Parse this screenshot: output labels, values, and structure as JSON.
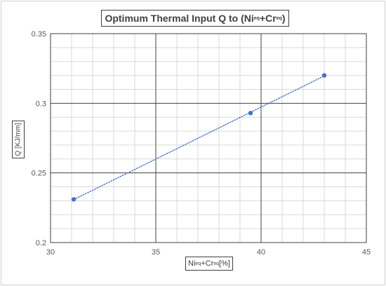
{
  "chart_data": {
    "type": "scatter",
    "title": {
      "prefix": "Optimum Thermal Input Q to (Ni",
      "sub1": "eq",
      "mid": "+Cr",
      "sub2": "eq",
      "suffix": ")"
    },
    "xlabel": {
      "prefix": "Ni",
      "sub1": "eq",
      "mid": "+Cr",
      "sub2": "eq",
      "suffix": " [%]"
    },
    "ylabel": "Q [KJ/mm]",
    "xlim": [
      30,
      45
    ],
    "ylim": [
      0.2,
      0.35
    ],
    "x_ticks": [
      30,
      35,
      40,
      45
    ],
    "y_ticks": [
      0.2,
      0.25,
      0.3,
      0.35
    ],
    "x_tick_labels": [
      "30",
      "35",
      "40",
      "45"
    ],
    "y_tick_labels": [
      "0.2",
      "0.25",
      "0.3",
      "0.35"
    ],
    "x_minor_step": 1,
    "y_minor_step": 0.01,
    "grid": true,
    "trendline": "linear, dotted",
    "series": [
      {
        "x": [
          31.1,
          39.5,
          43.0
        ],
        "y": [
          0.231,
          0.293,
          0.32
        ],
        "color": "#4472c4"
      }
    ]
  }
}
